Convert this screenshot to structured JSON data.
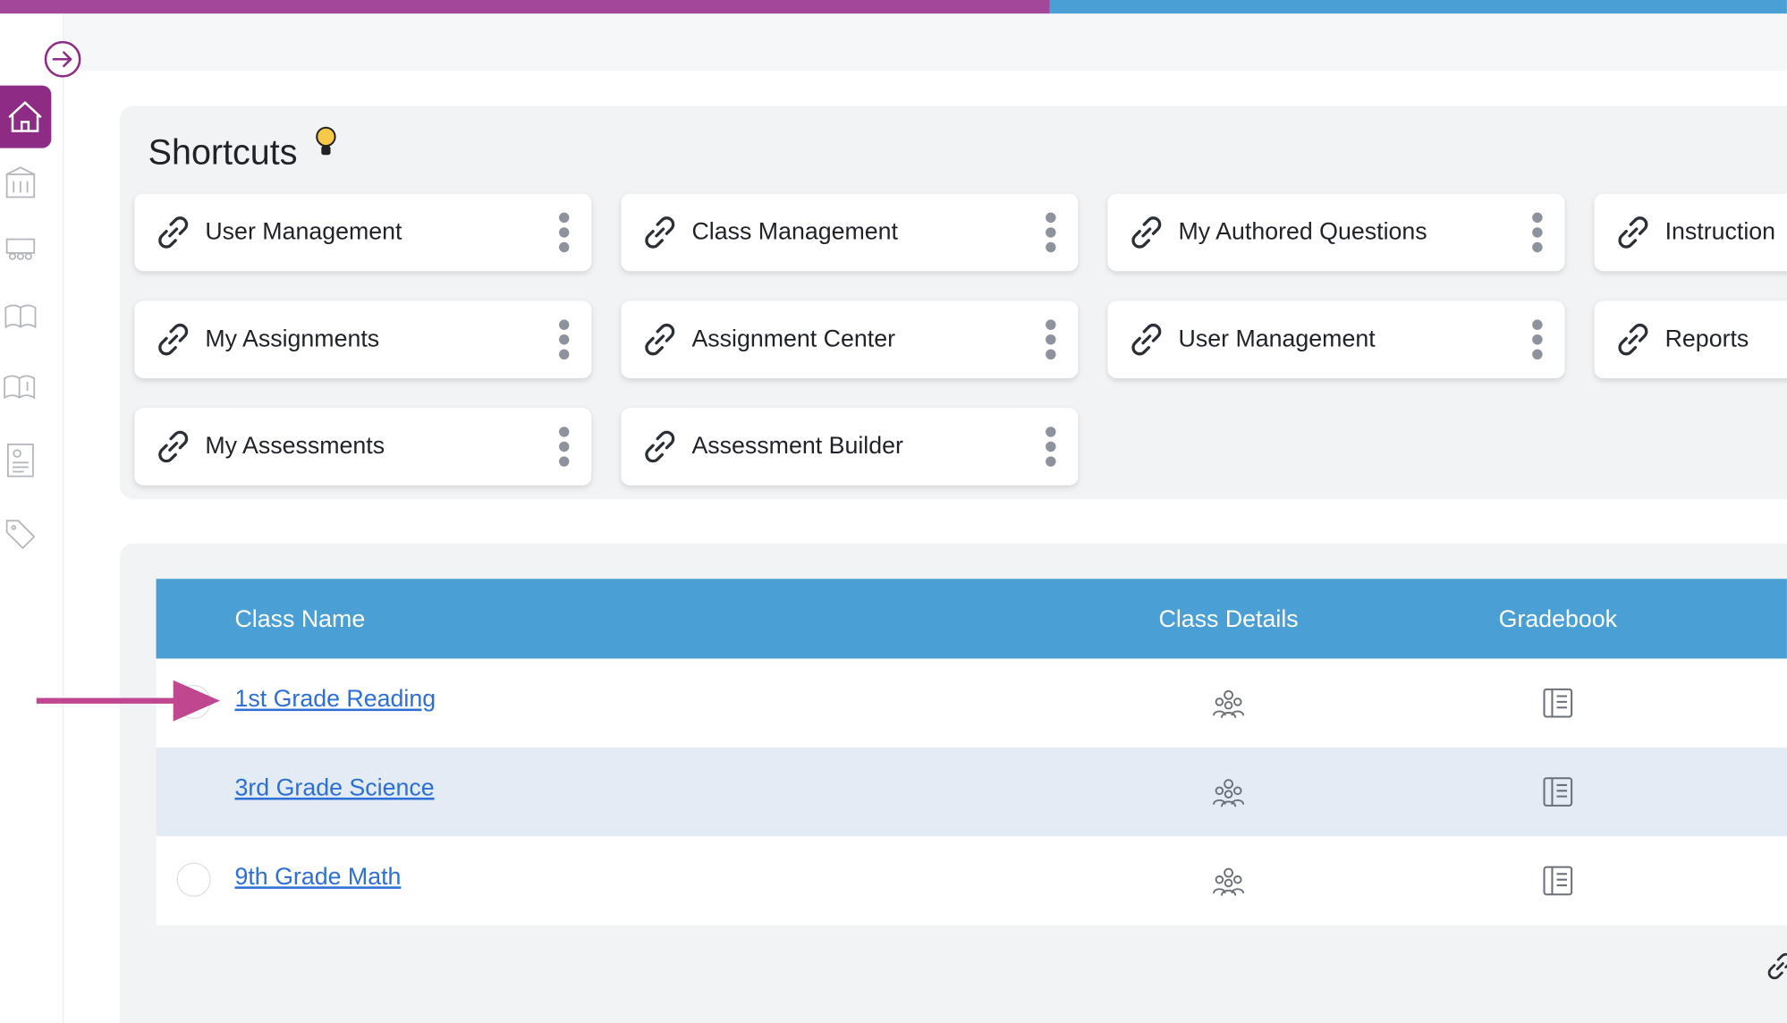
{
  "header": {
    "title": "Shortcuts"
  },
  "shortcuts": [
    {
      "label": "User Management"
    },
    {
      "label": "Class Management"
    },
    {
      "label": "My Authored Questions"
    },
    {
      "label": "Instruction"
    },
    {
      "label": "My Assignments"
    },
    {
      "label": "Assignment Center"
    },
    {
      "label": "User Management"
    },
    {
      "label": "Reports"
    },
    {
      "label": "My Assessments"
    },
    {
      "label": "Assessment Builder"
    }
  ],
  "table": {
    "columns": [
      "Class Name",
      "Class Details",
      "Gradebook"
    ],
    "rows": [
      {
        "class_name": "1st Grade Reading"
      },
      {
        "class_name": "3rd Grade Science"
      },
      {
        "class_name": "9th Grade Math"
      }
    ]
  }
}
